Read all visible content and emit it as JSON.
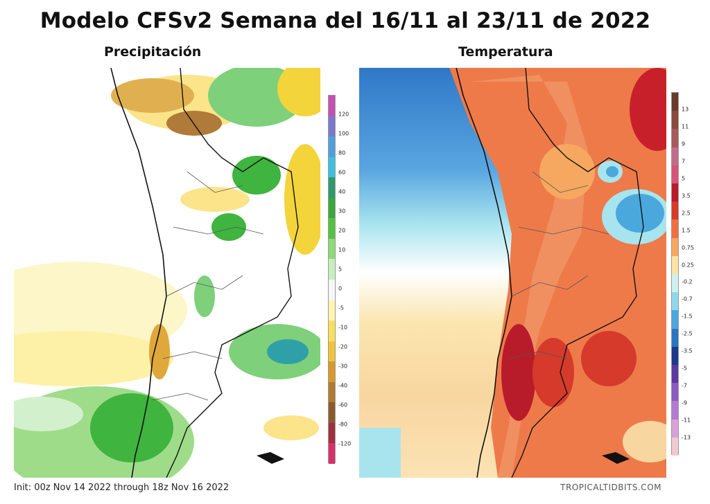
{
  "title": "Modelo CFSv2 Semana del 16/11 al 23/11 de 2022",
  "panels": [
    {
      "title": "Precipitación",
      "scale_labels": [
        "120",
        "100",
        "80",
        "60",
        "40",
        "30",
        "20",
        "10",
        "5",
        "0",
        "-5",
        "-10",
        "-20",
        "-30",
        "-40",
        "-60",
        "-80",
        "-120"
      ],
      "scale_colors": [
        "#c64fb4",
        "#7a78cc",
        "#4f9fdc",
        "#3cc0e0",
        "#2c9a6e",
        "#3aa83c",
        "#55c140",
        "#8fd97a",
        "#c6efc0",
        "#f6f6f6",
        "#fff5b0",
        "#f7e15a",
        "#f0c43a",
        "#d79a2a",
        "#b27a30",
        "#8a5a2c",
        "#a03040",
        "#d8306a"
      ]
    },
    {
      "title": "Temperatura",
      "scale_labels": [
        "13",
        "11",
        "9",
        "7",
        "5",
        "3.5",
        "2.5",
        "1.5",
        "0.75",
        "0.25",
        "-0.2",
        "-0.7",
        "-1.5",
        "-2.5",
        "-3.5",
        "-5",
        "-7",
        "-9",
        "-11",
        "-13"
      ],
      "scale_colors": [
        "#6b3b2a",
        "#8a4a3c",
        "#a85a5a",
        "#c46a8a",
        "#d8527a",
        "#b81c2a",
        "#d63a2a",
        "#ee7040",
        "#f6a860",
        "#fbe3a4",
        "#cff0ee",
        "#8fd8ea",
        "#4aa8dc",
        "#2a74c0",
        "#1a3a8a",
        "#5a3aa0",
        "#8a5ac0",
        "#b47ad0",
        "#d8a2d8",
        "#f0cad0"
      ]
    }
  ],
  "footer": {
    "init": "Init: 00z Nov 14 2022 through 18z Nov 16 2022",
    "credit": "TROPICALTIDBITS.COM"
  }
}
